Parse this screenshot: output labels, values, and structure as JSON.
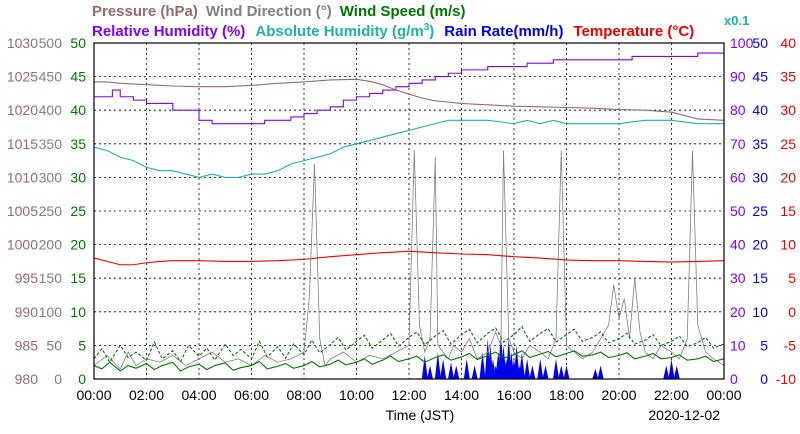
{
  "chart_data": {
    "type": "line",
    "date": "2020-12-02",
    "xlabel": "Time (JST)",
    "x_ticks": [
      "00:00",
      "02:00",
      "04:00",
      "06:00",
      "08:00",
      "10:00",
      "12:00",
      "14:00",
      "16:00",
      "18:00",
      "20:00",
      "22:00",
      "00:00"
    ],
    "grid": true,
    "legend_placement": "top",
    "legend": [
      {
        "key": "pressure",
        "text": "Pressure (hPa)",
        "color": "#9a6a6a"
      },
      {
        "key": "wind_dir",
        "text": "Wind Direction (°)",
        "color": "#808080"
      },
      {
        "key": "wind_speed",
        "text": "Wind Speed (m/s)",
        "color": "#007700"
      },
      {
        "key": "humidity",
        "text": "Relative Humidity (%)",
        "color": "#8000ff"
      },
      {
        "key": "abs_humidity",
        "text": "Absolute Humidity (g/m",
        "sup": "3",
        "tail": ")",
        "color": "#20b0b0"
      },
      {
        "key": "rain",
        "text": "Rain Rate(mm/h)",
        "color": "#0000ee"
      },
      {
        "key": "temp",
        "text": "Temperature (°C)",
        "color": "#ee0000"
      },
      {
        "key": "abs_scale",
        "text": "x0.1",
        "color": "#20b0b0"
      }
    ],
    "axes": {
      "pressure": {
        "ticks": [
          "1030",
          "1025",
          "1020",
          "1015",
          "1010",
          "1005",
          "1000",
          "995",
          "990",
          "985",
          "980"
        ],
        "ylim": [
          980,
          1030
        ],
        "color": "#9a6a6a"
      },
      "wind_dir": {
        "ticks": [
          "500",
          "450",
          "400",
          "350",
          "300",
          "250",
          "200",
          "150",
          "100",
          "50",
          "0"
        ],
        "ylim": [
          0,
          500
        ],
        "color": "#808080"
      },
      "wind_speed": {
        "ticks": [
          "50",
          "45",
          "40",
          "35",
          "30",
          "25",
          "20",
          "15",
          "10",
          "5",
          "0"
        ],
        "ylim": [
          0,
          50
        ],
        "color": "#007700"
      },
      "humidity": {
        "ticks": [
          "100",
          "90",
          "80",
          "70",
          "60",
          "50",
          "40",
          "30",
          "20",
          "10",
          "0"
        ],
        "ylim": [
          0,
          100
        ],
        "color": "#8000ff"
      },
      "rain": {
        "ticks": [
          "50",
          "45",
          "40",
          "35",
          "30",
          "25",
          "20",
          "15",
          "10",
          "5",
          "0"
        ],
        "ylim": [
          0,
          50
        ],
        "color": "#0000ee"
      },
      "temp": {
        "ticks": [
          "40",
          "35",
          "30",
          "25",
          "20",
          "15",
          "10",
          "5",
          "0",
          "-5",
          "-10"
        ],
        "ylim": [
          -10,
          40
        ],
        "color": "#ee0000"
      }
    },
    "series": [
      {
        "key": "pressure",
        "axis": "pressure",
        "color": "#9a6a6a",
        "x": [
          0,
          0.5,
          1,
          2,
          3,
          4,
          5,
          6,
          7,
          8,
          9,
          10,
          10.5,
          11,
          11.5,
          12,
          12.5,
          13,
          13.5,
          14,
          14.5,
          15,
          16,
          17,
          18,
          19,
          20,
          21,
          22,
          22.5,
          23,
          24
        ],
        "y": [
          1024.2,
          1024.2,
          1024,
          1023.8,
          1023.6,
          1023.5,
          1023.5,
          1023.7,
          1024,
          1024.2,
          1024.5,
          1024.6,
          1024.3,
          1023.8,
          1023,
          1022.4,
          1021.8,
          1021.4,
          1021.2,
          1021,
          1020.9,
          1020.8,
          1020.6,
          1020.5,
          1020.4,
          1020.3,
          1020.1,
          1020,
          1019.7,
          1019.2,
          1018.7,
          1018.5
        ]
      },
      {
        "key": "humidity",
        "axis": "humidity",
        "color": "#8000ff",
        "step": true,
        "x": [
          0,
          0.7,
          1,
          1.5,
          2,
          2.5,
          3,
          3.5,
          4,
          4.5,
          5,
          5.5,
          6,
          6.5,
          7,
          7.5,
          8,
          8.5,
          9,
          9.5,
          10,
          10.5,
          11,
          11.5,
          12,
          12.5,
          13,
          13.5,
          14,
          14.5,
          15,
          15.5,
          16,
          16.5,
          17,
          17.5,
          18,
          18.5,
          19,
          19.5,
          20,
          20.5,
          21,
          21.5,
          22,
          22.5,
          23,
          24
        ],
        "y": [
          84,
          86,
          84,
          83,
          82,
          82,
          80,
          80,
          77,
          76,
          76,
          76,
          76,
          77,
          77,
          78,
          79,
          80,
          81,
          83,
          84,
          85,
          86,
          87,
          88,
          89,
          90,
          91,
          92,
          92,
          93,
          93,
          93,
          94,
          94,
          95,
          95,
          95,
          95,
          95,
          95,
          96,
          96,
          96,
          96,
          96,
          97,
          97
        ]
      },
      {
        "key": "abs_humidity",
        "axis": "humidity",
        "color": "#20b0b0",
        "x": [
          0,
          0.5,
          1,
          1.5,
          2,
          2.5,
          3,
          3.5,
          4,
          4.5,
          5,
          5.5,
          6,
          6.5,
          7,
          7.5,
          8,
          8.5,
          9,
          9.5,
          10,
          10.5,
          11,
          11.5,
          12,
          12.5,
          13,
          13.5,
          14,
          15,
          16,
          16.5,
          17,
          17.5,
          18,
          19,
          20,
          21,
          22,
          23,
          24
        ],
        "y": [
          69,
          68,
          66,
          65,
          63,
          62,
          62,
          61,
          60,
          61,
          60,
          60,
          61,
          61,
          62,
          64,
          65,
          66,
          67,
          69,
          70,
          71,
          72,
          73,
          74,
          75,
          76,
          77,
          77,
          77,
          76,
          77,
          76,
          77,
          76,
          76,
          76,
          77,
          77,
          76,
          76
        ]
      },
      {
        "key": "temp",
        "axis": "temp",
        "color": "#ee0000",
        "x": [
          0,
          0.5,
          1,
          1.5,
          2,
          2.5,
          3,
          4,
          5,
          6,
          7,
          8,
          9,
          10,
          11,
          12,
          13,
          14,
          15,
          16,
          17,
          18,
          19,
          20,
          21,
          22,
          23,
          24
        ],
        "y": [
          8,
          7.5,
          7,
          7,
          7.3,
          7.5,
          7.6,
          7.6,
          7.5,
          7.5,
          7.6,
          7.8,
          8.2,
          8.5,
          8.8,
          9,
          8.8,
          8.6,
          8.5,
          8.2,
          8,
          7.7,
          7.6,
          7.6,
          7.5,
          7.4,
          7.5,
          7.6
        ]
      },
      {
        "key": "wind_speed",
        "axis": "wind_speed",
        "color": "#007700",
        "x": [
          0,
          0.3,
          0.6,
          1,
          1.3,
          1.6,
          2,
          2.3,
          2.6,
          3,
          3.3,
          3.6,
          4,
          4.3,
          4.6,
          5,
          5.3,
          5.6,
          6,
          6.3,
          6.6,
          7,
          7.3,
          7.6,
          8,
          8.3,
          8.6,
          9,
          9.3,
          9.6,
          10,
          10.3,
          10.6,
          11,
          11.3,
          11.6,
          12,
          12.3,
          12.6,
          13,
          13.3,
          13.6,
          14,
          14.3,
          14.6,
          15,
          15.3,
          15.6,
          16,
          16.3,
          16.6,
          17,
          17.3,
          17.6,
          18,
          18.3,
          18.6,
          19,
          19.3,
          19.6,
          20,
          20.3,
          20.6,
          21,
          21.3,
          21.6,
          22,
          22.3,
          22.6,
          23,
          23.3,
          23.6,
          24
        ],
        "y": [
          2,
          1.5,
          2.5,
          1.2,
          2,
          1.6,
          2.3,
          1.4,
          2,
          2.5,
          1.2,
          1.8,
          2.2,
          1.4,
          2,
          2.4,
          1.3,
          1.7,
          2,
          2.6,
          1.5,
          1.9,
          2.3,
          1.6,
          2,
          2.6,
          1.8,
          2.2,
          2.8,
          2.1,
          2.5,
          3,
          2.2,
          2.8,
          3.4,
          2.6,
          3,
          3.4,
          2.5,
          3.2,
          3.6,
          2.8,
          3.3,
          3.8,
          2.9,
          3.5,
          4,
          3.1,
          3.6,
          4.2,
          3.2,
          3.7,
          4.1,
          3.3,
          3.8,
          4.2,
          3.4,
          3.6,
          4,
          3.2,
          3.5,
          3.9,
          3,
          3.4,
          3.8,
          3,
          3.2,
          3.6,
          2.8,
          3,
          3.4,
          2.6,
          3
        ]
      },
      {
        "key": "wind_gust",
        "axis": "wind_speed",
        "color": "#007700",
        "dashed": true,
        "x": [
          0,
          0.3,
          0.6,
          1,
          1.3,
          1.6,
          2,
          2.3,
          2.6,
          3,
          3.3,
          3.6,
          4,
          4.3,
          4.6,
          5,
          5.3,
          5.6,
          6,
          6.3,
          6.6,
          7,
          7.3,
          7.6,
          8,
          8.3,
          8.6,
          9,
          9.3,
          9.6,
          10,
          10.3,
          10.6,
          11,
          11.3,
          11.6,
          12,
          12.3,
          12.6,
          13,
          13.3,
          13.6,
          14,
          14.3,
          14.6,
          15,
          15.3,
          15.6,
          16,
          16.3,
          16.6,
          17,
          17.3,
          17.6,
          18,
          18.3,
          18.6,
          19,
          19.3,
          19.6,
          20,
          20.3,
          20.6,
          21,
          21.3,
          21.6,
          22,
          22.3,
          22.6,
          23,
          23.3,
          23.6,
          24
        ],
        "y": [
          3,
          4.5,
          2.5,
          5,
          3.2,
          4,
          2.8,
          5.5,
          3,
          4.2,
          2.6,
          5,
          3.4,
          4.6,
          2.8,
          5.2,
          3.5,
          4.4,
          3,
          5.6,
          3.3,
          4.8,
          3.1,
          5.2,
          3.6,
          5.8,
          3.9,
          5.1,
          6.2,
          4.3,
          5.6,
          6.5,
          4.6,
          5.8,
          6.8,
          4.9,
          6.2,
          7,
          5.1,
          6.4,
          7.2,
          5.2,
          6.6,
          7.4,
          5.4,
          6.8,
          7.6,
          5.5,
          6.6,
          7.8,
          5.6,
          6.8,
          7.5,
          5.5,
          6.6,
          7.4,
          5.6,
          6.2,
          7,
          5.4,
          6,
          6.8,
          5.2,
          5.8,
          6.6,
          5,
          5.6,
          6.4,
          4.8,
          5.4,
          6.2,
          4.6,
          5.2
        ]
      },
      {
        "key": "wind_dir",
        "axis": "wind_dir",
        "color": "#808080",
        "x": [
          0,
          0.5,
          1,
          1.3,
          1.6,
          2,
          2.5,
          3,
          3.5,
          4,
          4.5,
          5,
          5.5,
          6,
          6.5,
          7,
          7.5,
          8,
          8.2,
          8.4,
          8.6,
          8.8,
          9,
          9.5,
          10,
          10.5,
          11,
          11.5,
          12,
          12.2,
          12.4,
          12.6,
          12.8,
          13,
          13.1,
          13.3,
          13.5,
          13.7,
          14,
          14.3,
          14.6,
          15,
          15.3,
          15.5,
          15.6,
          15.8,
          16,
          16.3,
          16.6,
          17,
          17.3,
          17.6,
          17.8,
          18,
          18.3,
          18.6,
          19,
          19.3,
          19.6,
          19.8,
          20,
          20.2,
          20.4,
          20.6,
          20.8,
          21,
          21.3,
          21.6,
          22,
          22.3,
          22.6,
          22.8,
          23,
          23.3,
          23.6,
          24
        ],
        "y": [
          20,
          35,
          15,
          40,
          20,
          30,
          25,
          35,
          20,
          30,
          40,
          25,
          30,
          20,
          35,
          25,
          30,
          40,
          120,
          320,
          60,
          20,
          30,
          40,
          25,
          35,
          30,
          40,
          50,
          340,
          80,
          40,
          60,
          330,
          50,
          40,
          30,
          50,
          40,
          60,
          30,
          40,
          70,
          50,
          340,
          60,
          40,
          30,
          50,
          40,
          30,
          60,
          340,
          50,
          40,
          30,
          40,
          60,
          80,
          140,
          90,
          120,
          60,
          150,
          70,
          40,
          30,
          50,
          40,
          30,
          60,
          340,
          80,
          40,
          30,
          20
        ]
      },
      {
        "key": "rain",
        "axis": "rain",
        "color": "#0000ee",
        "bars": true,
        "x": [
          12.6,
          12.8,
          13.1,
          13.3,
          13.6,
          13.8,
          14.2,
          14.5,
          14.8,
          15.0,
          15.1,
          15.2,
          15.3,
          15.4,
          15.5,
          15.6,
          15.7,
          15.8,
          15.9,
          16.0,
          16.1,
          16.2,
          16.3,
          16.5,
          16.7,
          17.0,
          17.2,
          17.6,
          17.8,
          18.0,
          19.1,
          19.3,
          21.8,
          22.0,
          22.2
        ],
        "y": [
          3.5,
          2,
          4,
          3,
          2.5,
          2,
          3,
          2,
          4,
          6,
          5,
          3,
          2,
          4,
          7,
          5,
          3,
          6,
          4,
          3,
          5,
          2,
          4,
          3,
          2,
          3,
          2,
          3,
          2,
          2,
          1.5,
          2,
          2,
          3,
          2
        ]
      }
    ]
  }
}
